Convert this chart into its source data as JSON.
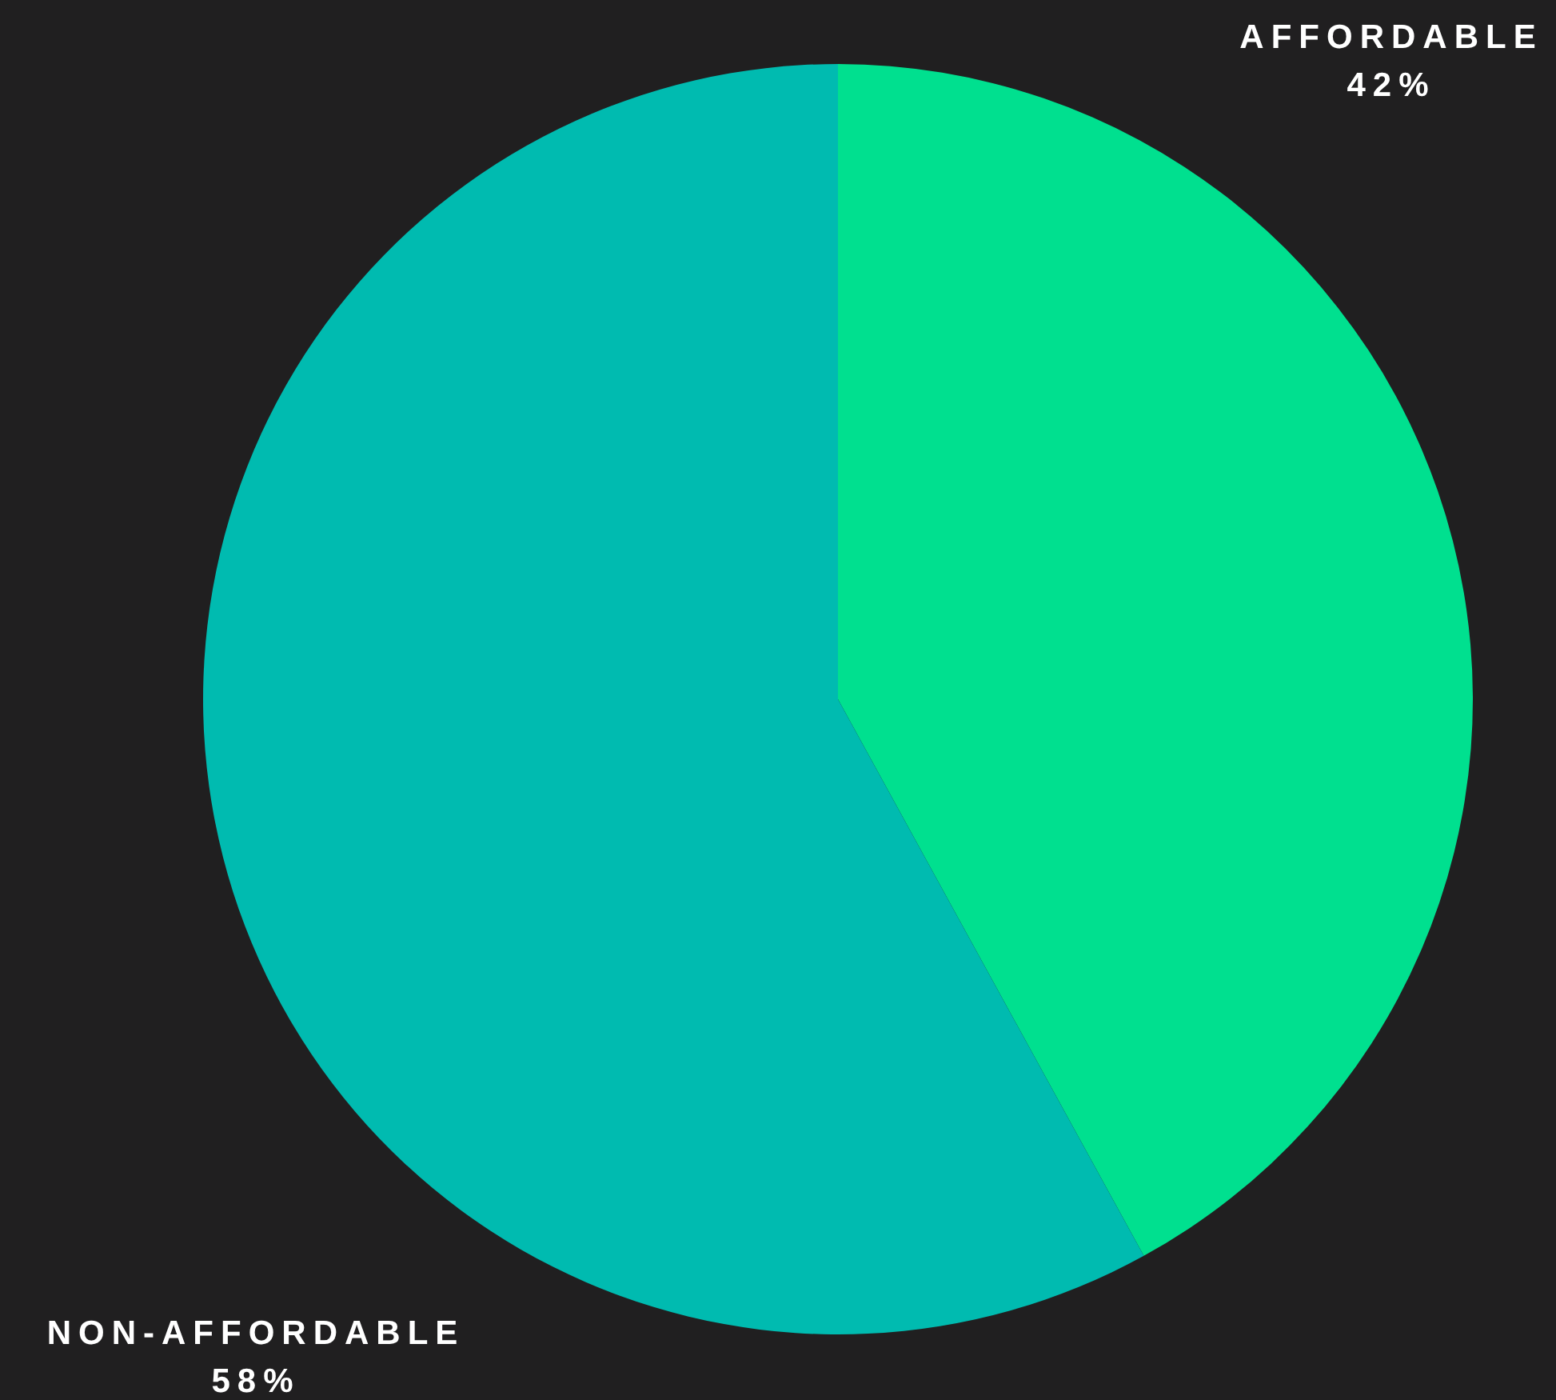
{
  "chart_data": {
    "type": "pie",
    "categories": [
      "AFFORDABLE",
      "NON-AFFORDABLE"
    ],
    "values": [
      42,
      58
    ],
    "colors": [
      "#00e08f",
      "#00bbb0"
    ],
    "value_labels": [
      "42%",
      "58%"
    ]
  }
}
